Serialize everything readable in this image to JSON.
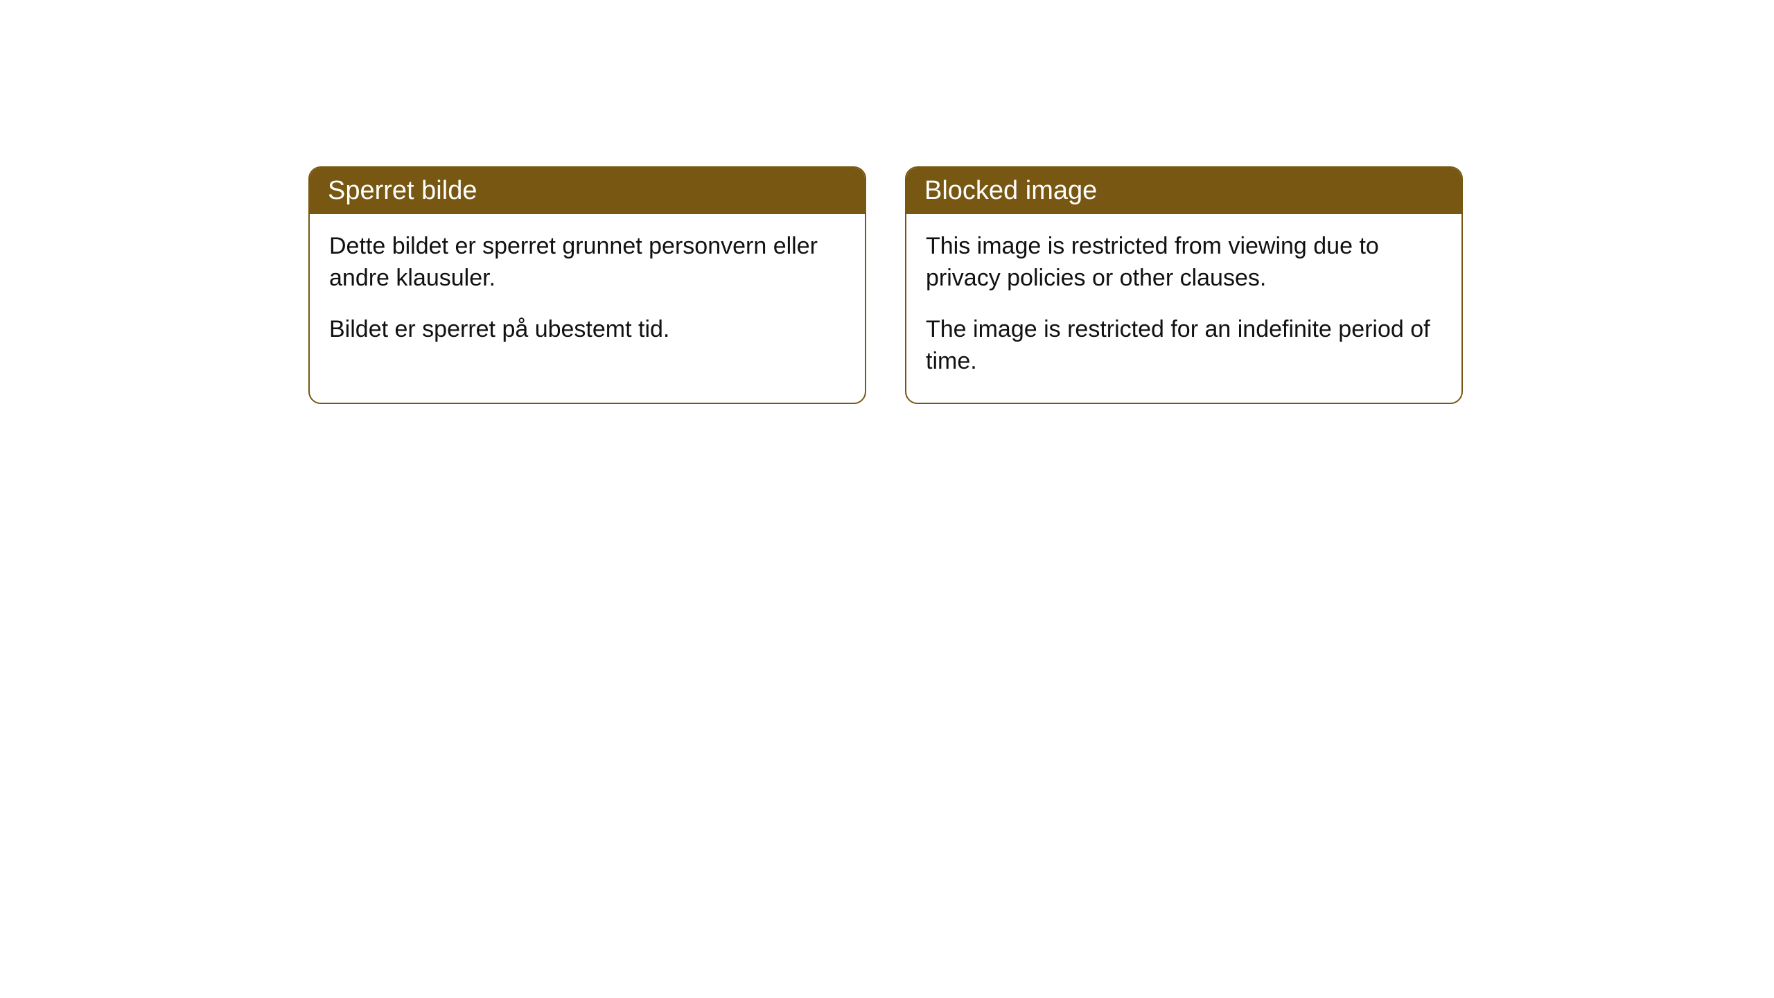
{
  "cards": [
    {
      "title": "Sperret bilde",
      "paragraph1": "Dette bildet er sperret grunnet personvern eller andre klausuler.",
      "paragraph2": "Bildet er sperret på ubestemt tid."
    },
    {
      "title": "Blocked image",
      "paragraph1": "This image is restricted from viewing due to privacy policies or other clauses.",
      "paragraph2": "The image is restricted for an indefinite period of time."
    }
  ],
  "colors": {
    "header_bg": "#775711",
    "header_text": "#ffffff",
    "border": "#775711",
    "body_text": "#111111",
    "background": "#ffffff"
  }
}
